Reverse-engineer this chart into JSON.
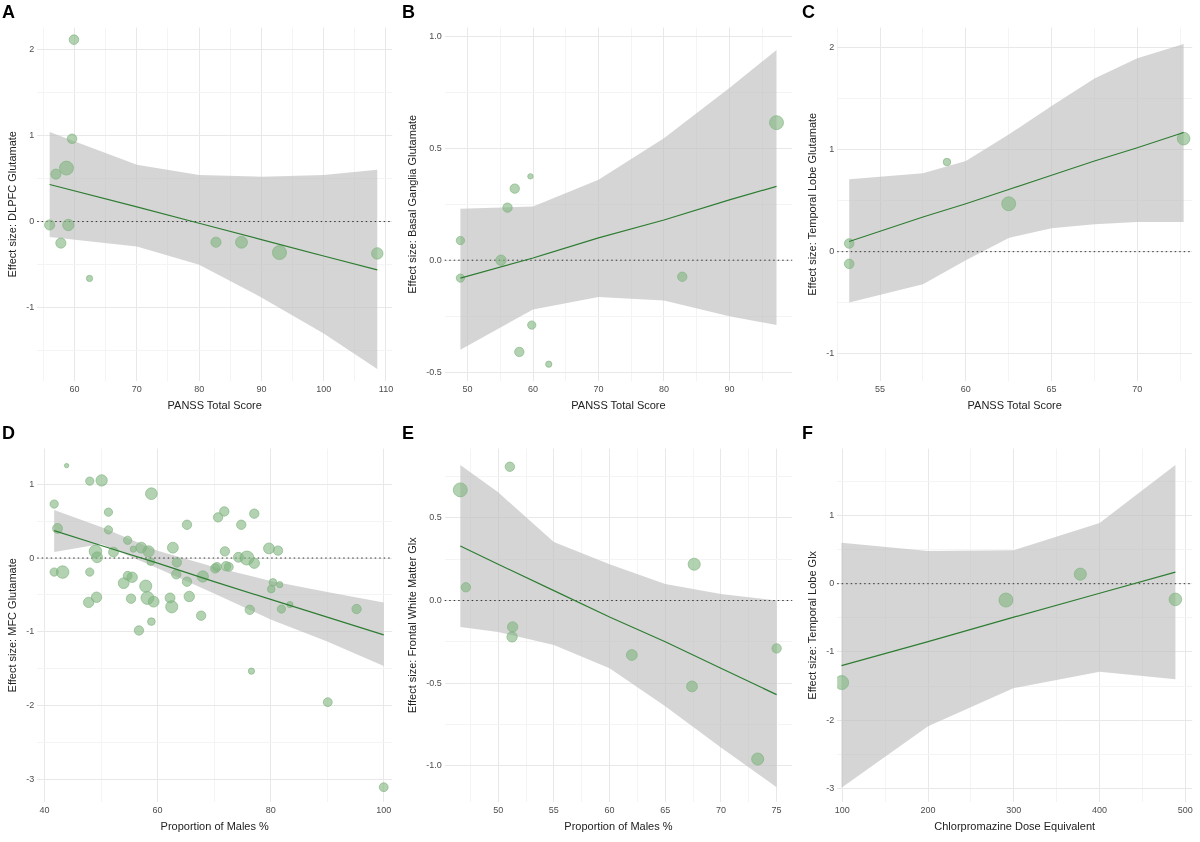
{
  "chart_data": [
    {
      "type": "bubble",
      "title": "A",
      "xlabel": "PANSS Total Score",
      "ylabel": "Effect size: DLPFC Glutamate",
      "xlim": [
        54,
        111
      ],
      "ylim": [
        -1.85,
        2.25
      ],
      "xticks": [
        {
          "value": 55,
          "label": null
        },
        60,
        {
          "value": 65,
          "label": null
        },
        70,
        {
          "value": 75,
          "label": null
        },
        80,
        {
          "value": 85,
          "label": null
        },
        90,
        {
          "value": 95,
          "label": null
        },
        100,
        {
          "value": 105,
          "label": null
        },
        110
      ],
      "yticks": [
        {
          "value": -1.5,
          "label": null
        },
        -1,
        {
          "value": -0.5,
          "label": null
        },
        0,
        {
          "value": 0.5,
          "label": null
        },
        1,
        {
          "value": 1.5,
          "label": null
        },
        2
      ],
      "grid": true,
      "ref_lines": [
        {
          "axis": "y",
          "value": 0,
          "color": "#333333",
          "line_style": "dotted"
        }
      ],
      "series": [
        {
          "color": "#7fb47f",
          "x": [
            56.0,
            57.0,
            57.8,
            58.7,
            59.0,
            59.6,
            59.9,
            62.4,
            82.7,
            86.8,
            92.9,
            108.6
          ],
          "values": [
            -0.04,
            0.55,
            -0.25,
            0.62,
            -0.04,
            0.96,
            2.11,
            -0.66,
            -0.24,
            -0.24,
            -0.36,
            -0.37
          ],
          "sizes": [
            0.53,
            0.53,
            0.53,
            1,
            0.67,
            0.47,
            0.47,
            0.2,
            0.53,
            0.73,
            1,
            0.67
          ]
        },
        {
          "type": "line",
          "color": "#2e7d32",
          "x": [
            56.0,
            70,
            80,
            90,
            100,
            108.6
          ],
          "values": [
            0.43,
            0.17,
            -0.02,
            -0.21,
            -0.4,
            -0.56
          ],
          "lower": [
            -0.18,
            -0.29,
            -0.5,
            -0.88,
            -1.3,
            -1.71
          ],
          "upper": [
            1.04,
            0.66,
            0.54,
            0.52,
            0.54,
            0.6
          ]
        }
      ]
    },
    {
      "type": "bubble",
      "title": "B",
      "xlabel": "PANSS Total Score",
      "ylabel": "Effect size: Basal Ganglia Glutamate",
      "xlim": [
        46.5,
        99.6
      ],
      "ylim": [
        -0.54,
        1.04
      ],
      "xticks": [
        50,
        {
          "value": 55,
          "label": null
        },
        60,
        {
          "value": 65,
          "label": null
        },
        70,
        {
          "value": 75,
          "label": null
        },
        80,
        {
          "value": 85,
          "label": null
        },
        90,
        {
          "value": 95,
          "label": null
        }
      ],
      "yticks": [
        {
          "value": -0.5,
          "label": "-0.5"
        },
        {
          "value": -0.25,
          "label": null
        },
        {
          "value": 0,
          "label": "0.0"
        },
        {
          "value": 0.25,
          "label": null
        },
        {
          "value": 0.5,
          "label": "0.5"
        },
        {
          "value": 0.75,
          "label": null
        },
        {
          "value": 1,
          "label": "1.0"
        }
      ],
      "grid": true,
      "ref_lines": [
        {
          "axis": "y",
          "value": 0,
          "color": "#333333",
          "line_style": "dotted"
        }
      ],
      "series": [
        {
          "color": "#7fb47f",
          "x": [
            48.9,
            48.9,
            55.1,
            56.1,
            57.2,
            59.6,
            59.8,
            57.9,
            62.4,
            82.8,
            97.2
          ],
          "values": [
            0.088,
            -0.08,
            0.0,
            0.235,
            0.32,
            0.375,
            -0.29,
            -0.41,
            -0.465,
            -0.074,
            0.615
          ],
          "sizes": [
            0.35,
            0.35,
            0.55,
            0.45,
            0.45,
            0.15,
            0.35,
            0.45,
            0.2,
            0.45,
            1
          ]
        },
        {
          "type": "line",
          "color": "#2e7d32",
          "x": [
            48.9,
            60,
            70,
            80,
            90,
            97.2
          ],
          "values": [
            -0.08,
            0.01,
            0.1,
            0.18,
            0.27,
            0.33
          ],
          "lower": [
            -0.4,
            -0.22,
            -0.165,
            -0.18,
            -0.25,
            -0.29
          ],
          "upper": [
            0.23,
            0.24,
            0.36,
            0.545,
            0.77,
            0.94
          ]
        }
      ]
    },
    {
      "type": "bubble",
      "title": "C",
      "xlabel": "PANSS Total Score",
      "ylabel": "Effect size: Temporal Lobe Glutamate",
      "xlim": [
        52.5,
        73.2
      ],
      "ylim": [
        -1.27,
        2.2
      ],
      "xticks": [
        {
          "value": 52.5,
          "label": null
        },
        55,
        {
          "value": 57.5,
          "label": null
        },
        60,
        {
          "value": 62.5,
          "label": null
        },
        65,
        {
          "value": 67.5,
          "label": null
        },
        70,
        {
          "value": 72.5,
          "label": null
        }
      ],
      "yticks": [
        -1,
        {
          "value": -0.5,
          "label": null
        },
        0,
        {
          "value": 0.5,
          "label": null
        },
        1,
        {
          "value": 1.5,
          "label": null
        },
        2
      ],
      "grid": true,
      "ref_lines": [
        {
          "axis": "y",
          "value": 0,
          "color": "#333333",
          "line_style": "dotted"
        }
      ],
      "series": [
        {
          "color": "#7fb47f",
          "x": [
            53.2,
            53.2,
            58.9,
            62.5,
            72.7
          ],
          "values": [
            0.08,
            -0.12,
            0.88,
            0.47,
            1.11
          ],
          "sizes": [
            0.47,
            0.47,
            0.29,
            1,
            0.82
          ]
        },
        {
          "type": "line",
          "color": "#2e7d32",
          "x": [
            53.2,
            57.5,
            60,
            62.5,
            65,
            67.5,
            70,
            72.7
          ],
          "values": [
            0.1,
            0.34,
            0.47,
            0.61,
            0.75,
            0.89,
            1.02,
            1.17
          ],
          "lower": [
            -0.5,
            -0.32,
            -0.085,
            0.135,
            0.23,
            0.27,
            0.29,
            0.29
          ],
          "upper": [
            0.71,
            0.77,
            0.89,
            1.15,
            1.43,
            1.7,
            1.9,
            2.04
          ]
        }
      ]
    },
    {
      "type": "bubble",
      "title": "D",
      "xlabel": "Proportion of Males %",
      "ylabel": "Effect size: MFC Glutamate",
      "xlim": [
        38.7,
        101.5
      ],
      "ylim": [
        -3.3,
        1.48
      ],
      "xticks": [
        40,
        {
          "value": 50,
          "label": null
        },
        60,
        {
          "value": 70,
          "label": null
        },
        80,
        {
          "value": 90,
          "label": null
        },
        100
      ],
      "yticks": [
        -3,
        {
          "value": -2.5,
          "label": null
        },
        -2,
        {
          "value": -1.5,
          "label": null
        },
        -1,
        {
          "value": -0.5,
          "label": null
        },
        0,
        {
          "value": 0.5,
          "label": null
        },
        1
      ],
      "grid": true,
      "ref_lines": [
        {
          "axis": "y",
          "value": 0,
          "color": "#333333",
          "line_style": "dotted"
        }
      ],
      "series": [
        {
          "color": "#7fb47f",
          "x": [
            41.7,
            43.9,
            48.0,
            50.1,
            58.9,
            51.3,
            51.3,
            42.3,
            41.7,
            43.2,
            48.0,
            49.0,
            49.3,
            52.2,
            54.7,
            55.7,
            57.1,
            58.4,
            58.8,
            54.7,
            55.5,
            54.0,
            47.8,
            49.2,
            55.3,
            57.9,
            58.2,
            59.3,
            58.9,
            56.7,
            62.2,
            62.5,
            62.7,
            63.4,
            63.3,
            65.2,
            65.2,
            65.6,
            68.0,
            67.7,
            70.2,
            70.5,
            70.7,
            71.8,
            71.9,
            72.1,
            72.6,
            74.3,
            75.8,
            74.8,
            77.1,
            77.1,
            76.3,
            76.6,
            79.7,
            81.3,
            80.4,
            80.1,
            81.6,
            81.9,
            83.4,
            95.2,
            90.1,
            100.0
          ],
          "values": [
            0.73,
            1.25,
            1.04,
            1.05,
            0.87,
            0.62,
            0.38,
            0.4,
            -0.19,
            -0.19,
            -0.19,
            0.09,
            0.01,
            0.08,
            0.24,
            0.12,
            0.14,
            0.09,
            -0.05,
            -0.24,
            -0.26,
            -0.34,
            -0.6,
            -0.53,
            -0.55,
            -0.38,
            -0.54,
            -0.59,
            -0.86,
            -0.98,
            -0.54,
            -0.66,
            0.14,
            -0.06,
            -0.22,
            0.45,
            -0.32,
            -0.52,
            -0.25,
            -0.78,
            -0.14,
            -0.12,
            0.55,
            0.63,
            0.09,
            -0.11,
            -0.12,
            0.01,
            0.0,
            0.45,
            0.6,
            -0.07,
            -0.7,
            -1.53,
            0.13,
            0.1,
            -0.33,
            -0.42,
            -0.36,
            -0.69,
            -0.63,
            -0.69,
            -1.95,
            -3.1
          ],
          "sizes": [
            0.35,
            0.1,
            0.35,
            0.65,
            0.7,
            0.35,
            0.35,
            0.5,
            0.35,
            0.8,
            0.35,
            0.8,
            0.6,
            0.5,
            0.35,
            0.2,
            0.6,
            0.65,
            0.3,
            0.4,
            0.55,
            0.6,
            0.55,
            0.55,
            0.45,
            0.75,
            0.85,
            0.6,
            0.3,
            0.45,
            0.5,
            0.75,
            0.6,
            0.45,
            0.45,
            0.45,
            0.45,
            0.55,
            0.65,
            0.45,
            0.45,
            0.4,
            0.45,
            0.45,
            0.45,
            0.45,
            0.4,
            0.5,
            1,
            0.45,
            0.45,
            0.55,
            0.45,
            0.2,
            0.6,
            0.45,
            0.3,
            0.3,
            0.2,
            0.35,
            0.2,
            0.45,
            0.4,
            0.4
          ]
        },
        {
          "type": "line",
          "color": "#2e7d32",
          "x": [
            41.7,
            50,
            60,
            70,
            80,
            90,
            100
          ],
          "values": [
            0.37,
            0.17,
            -0.07,
            -0.32,
            -0.56,
            -0.8,
            -1.04
          ],
          "lower": [
            0.08,
            0.19,
            -0.14,
            -0.48,
            -0.83,
            -1.13,
            -1.46
          ],
          "upper": [
            0.65,
            0.42,
            0.1,
            -0.12,
            -0.31,
            -0.46,
            -0.6
          ]
        }
      ]
    },
    {
      "type": "bubble",
      "title": "E",
      "xlabel": "Proportion of Males %",
      "ylabel": "Effect size: Frontal White Matter Glx",
      "xlim": [
        45.2,
        76.4
      ],
      "ylim": [
        -1.22,
        0.92
      ],
      "xticks": [
        {
          "value": 47.5,
          "label": null
        },
        50,
        {
          "value": 52.5,
          "label": null
        },
        55,
        {
          "value": 57.5,
          "label": null
        },
        60,
        {
          "value": 62.5,
          "label": null
        },
        65,
        {
          "value": 67.5,
          "label": null
        },
        70,
        {
          "value": 72.5,
          "label": null
        },
        75
      ],
      "yticks": [
        {
          "value": -1,
          "label": "-1.0"
        },
        {
          "value": -0.75,
          "label": null
        },
        {
          "value": -0.5,
          "label": "-0.5"
        },
        {
          "value": -0.25,
          "label": null
        },
        {
          "value": 0,
          "label": "0.0"
        },
        {
          "value": 0.25,
          "label": null
        },
        {
          "value": 0.5,
          "label": "0.5"
        },
        {
          "value": 0.75,
          "label": null
        }
      ],
      "grid": true,
      "ref_lines": [
        {
          "axis": "y",
          "value": 0,
          "color": "#333333",
          "line_style": "dotted"
        }
      ],
      "series": [
        {
          "color": "#7fb47f",
          "x": [
            46.6,
            47.1,
            51.05,
            51.3,
            51.25,
            62.0,
            67.6,
            67.4,
            73.3,
            75.0
          ],
          "values": [
            0.67,
            0.08,
            0.81,
            -0.16,
            -0.22,
            -0.33,
            0.22,
            -0.52,
            -0.96,
            -0.29
          ],
          "sizes": [
            1,
            0.45,
            0.45,
            0.55,
            0.55,
            0.6,
            0.75,
            0.6,
            0.75,
            0.45
          ]
        },
        {
          "type": "line",
          "color": "#2e7d32",
          "x": [
            46.6,
            50,
            55,
            60,
            65,
            70,
            75
          ],
          "values": [
            0.33,
            0.22,
            0.06,
            -0.1,
            -0.25,
            -0.41,
            -0.57
          ],
          "lower": [
            -0.16,
            -0.19,
            -0.27,
            -0.41,
            -0.64,
            -0.89,
            -1.13
          ],
          "upper": [
            0.82,
            0.655,
            0.355,
            0.22,
            0.1,
            0.04,
            0.0
          ]
        }
      ]
    },
    {
      "type": "bubble",
      "title": "F",
      "xlabel": "Chlorpromazine Dose Equivalent",
      "ylabel": "Effect size: Temporal Lobe Glx",
      "xlim": [
        94,
        508
      ],
      "ylim": [
        -3.2,
        1.98
      ],
      "xticks": [
        100,
        {
          "value": 150,
          "label": null
        },
        200,
        {
          "value": 250,
          "label": null
        },
        300,
        {
          "value": 350,
          "label": null
        },
        400,
        {
          "value": 450,
          "label": null
        },
        500
      ],
      "yticks": [
        -3,
        {
          "value": -2.5,
          "label": null
        },
        -2,
        {
          "value": -1.5,
          "label": null
        },
        -1,
        {
          "value": -0.5,
          "label": null
        },
        0,
        {
          "value": 0.5,
          "label": null
        },
        1,
        {
          "value": 1.5,
          "label": null
        }
      ],
      "grid": true,
      "ref_lines": [
        {
          "axis": "y",
          "value": 0,
          "color": "#333333",
          "line_style": "dotted"
        }
      ],
      "series": [
        {
          "color": "#7fb47f",
          "x": [
            99.2,
            290.8,
            377.5,
            488.4
          ],
          "values": [
            -1.45,
            -0.24,
            0.14,
            -0.23
          ],
          "sizes": [
            1,
            1,
            0.75,
            0.81
          ]
        },
        {
          "type": "line",
          "color": "#2e7d32",
          "x": [
            99,
            200,
            300,
            400,
            488.4
          ],
          "values": [
            -1.2,
            -0.85,
            -0.49,
            -0.14,
            0.17
          ],
          "lower": [
            -2.99,
            -2.09,
            -1.53,
            -1.29,
            -1.4
          ],
          "upper": [
            0.6,
            0.48,
            0.49,
            0.89,
            1.74
          ]
        }
      ]
    }
  ]
}
